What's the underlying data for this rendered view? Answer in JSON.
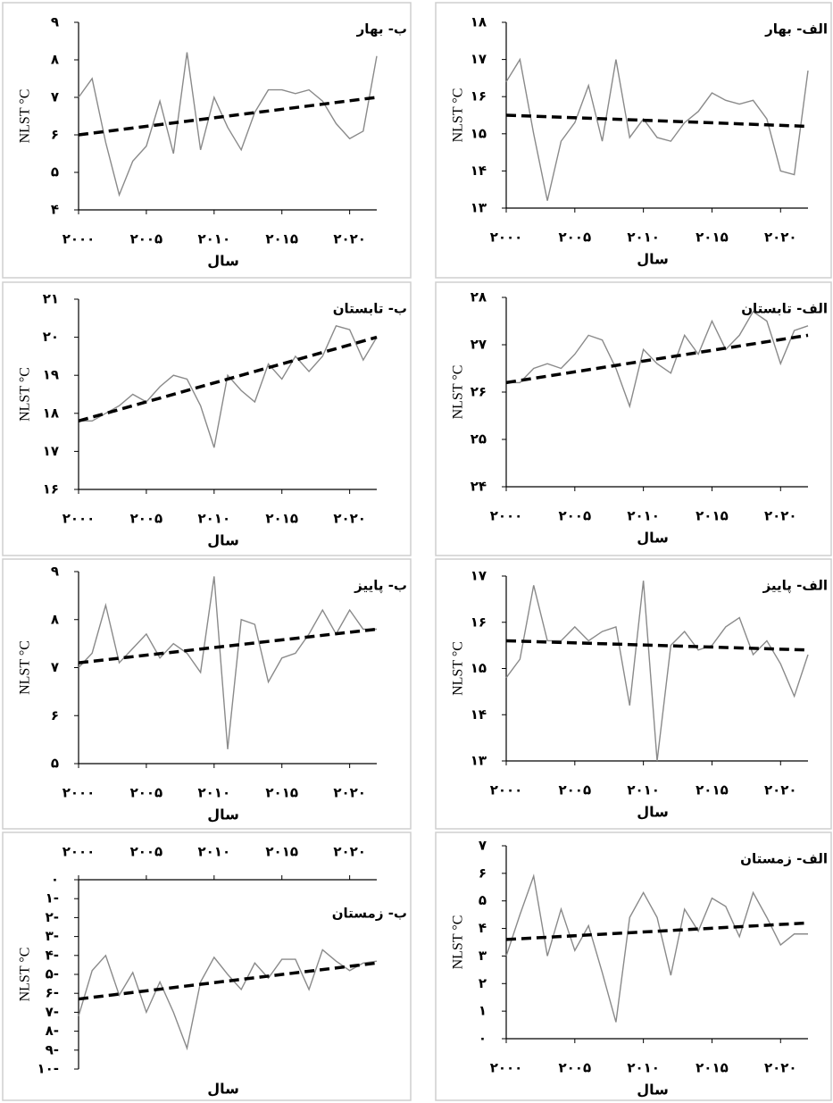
{
  "chart_data": [
    {
      "type": "line",
      "title": "ب- بهار",
      "x_label": "سال",
      "y_label": "NLST °C",
      "x": [
        2000,
        2001,
        2002,
        2003,
        2004,
        2005,
        2006,
        2007,
        2008,
        2009,
        2010,
        2011,
        2012,
        2013,
        2014,
        2015,
        2016,
        2017,
        2018,
        2019,
        2020,
        2021,
        2022
      ],
      "series": [
        {
          "color": "#8a8a8a",
          "values": [
            7.0,
            7.5,
            5.8,
            4.4,
            5.3,
            5.7,
            6.9,
            5.5,
            8.2,
            5.6,
            7.0,
            6.2,
            5.6,
            6.6,
            7.2,
            7.2,
            7.1,
            7.2,
            6.9,
            6.3,
            5.9,
            6.1,
            8.1
          ]
        }
      ],
      "trend": {
        "x": [
          2000,
          2022
        ],
        "values": [
          6.0,
          7.0
        ],
        "color": "#000000"
      },
      "xlim": [
        2000,
        2022
      ],
      "ylim": [
        4,
        9
      ],
      "xticks": [
        {
          "value": 2000,
          "label": "۲۰۰۰"
        },
        {
          "value": 2005,
          "label": "۲۰۰۵"
        },
        {
          "value": 2010,
          "label": "۲۰۱۰"
        },
        {
          "value": 2015,
          "label": "۲۰۱۵"
        },
        {
          "value": 2020,
          "label": "۲۰۲۰"
        }
      ],
      "yticks": [
        {
          "value": 4,
          "label": "۴"
        },
        {
          "value": 5,
          "label": "۵"
        },
        {
          "value": 6,
          "label": "۶"
        },
        {
          "value": 7,
          "label": "۷"
        },
        {
          "value": 8,
          "label": "۸"
        },
        {
          "value": 9,
          "label": "۹"
        }
      ]
    },
    {
      "type": "line",
      "title": "الف- بهار",
      "x_label": "سال",
      "y_label": "NLST °C",
      "x": [
        2000,
        2001,
        2002,
        2003,
        2004,
        2005,
        2006,
        2007,
        2008,
        2009,
        2010,
        2011,
        2012,
        2013,
        2014,
        2015,
        2016,
        2017,
        2018,
        2019,
        2020,
        2021,
        2022
      ],
      "series": [
        {
          "color": "#8a8a8a",
          "values": [
            16.4,
            17.0,
            15.0,
            13.2,
            14.8,
            15.3,
            16.3,
            14.8,
            17.0,
            14.9,
            15.4,
            14.9,
            14.8,
            15.3,
            15.6,
            16.1,
            15.9,
            15.8,
            15.9,
            15.4,
            14.0,
            13.9,
            16.7
          ]
        }
      ],
      "trend": {
        "x": [
          2000,
          2022
        ],
        "values": [
          15.5,
          15.2
        ],
        "color": "#000000"
      },
      "xlim": [
        2000,
        2022
      ],
      "ylim": [
        13,
        18
      ],
      "xticks": [
        {
          "value": 2000,
          "label": "۲۰۰۰"
        },
        {
          "value": 2005,
          "label": "۲۰۰۵"
        },
        {
          "value": 2010,
          "label": "۲۰۱۰"
        },
        {
          "value": 2015,
          "label": "۲۰۱۵"
        },
        {
          "value": 2020,
          "label": "۲۰۲۰"
        }
      ],
      "yticks": [
        {
          "value": 13,
          "label": "۱۳"
        },
        {
          "value": 14,
          "label": "۱۴"
        },
        {
          "value": 15,
          "label": "۱۵"
        },
        {
          "value": 16,
          "label": "۱۶"
        },
        {
          "value": 17,
          "label": "۱۷"
        },
        {
          "value": 18,
          "label": "۱۸"
        }
      ]
    },
    {
      "type": "line",
      "title": "ب- تابستان",
      "x_label": "سال",
      "y_label": "NLST °C",
      "x": [
        2000,
        2001,
        2002,
        2003,
        2004,
        2005,
        2006,
        2007,
        2008,
        2009,
        2010,
        2011,
        2012,
        2013,
        2014,
        2015,
        2016,
        2017,
        2018,
        2019,
        2020,
        2021,
        2022
      ],
      "series": [
        {
          "color": "#8a8a8a",
          "values": [
            17.8,
            17.8,
            18.0,
            18.2,
            18.5,
            18.3,
            18.7,
            19.0,
            18.9,
            18.2,
            17.1,
            19.0,
            18.6,
            18.3,
            19.3,
            18.9,
            19.5,
            19.1,
            19.5,
            20.3,
            20.2,
            19.4,
            20.0
          ]
        }
      ],
      "trend": {
        "x": [
          2000,
          2022
        ],
        "values": [
          17.8,
          20.0
        ],
        "color": "#000000"
      },
      "xlim": [
        2000,
        2022
      ],
      "ylim": [
        16,
        21
      ],
      "xticks": [
        {
          "value": 2000,
          "label": "۲۰۰۰"
        },
        {
          "value": 2005,
          "label": "۲۰۰۵"
        },
        {
          "value": 2010,
          "label": "۲۰۱۰"
        },
        {
          "value": 2015,
          "label": "۲۰۱۵"
        },
        {
          "value": 2020,
          "label": "۲۰۲۰"
        }
      ],
      "yticks": [
        {
          "value": 16,
          "label": "۱۶"
        },
        {
          "value": 17,
          "label": "۱۷"
        },
        {
          "value": 18,
          "label": "۱۸"
        },
        {
          "value": 19,
          "label": "۱۹"
        },
        {
          "value": 20,
          "label": "۲۰"
        },
        {
          "value": 21,
          "label": "۲۱"
        }
      ]
    },
    {
      "type": "line",
      "title": "الف- تابستان",
      "x_label": "سال",
      "y_label": "NLST °C",
      "x": [
        2000,
        2001,
        2002,
        2003,
        2004,
        2005,
        2006,
        2007,
        2008,
        2009,
        2010,
        2011,
        2012,
        2013,
        2014,
        2015,
        2016,
        2017,
        2018,
        2019,
        2020,
        2021,
        2022
      ],
      "series": [
        {
          "color": "#8a8a8a",
          "values": [
            26.2,
            26.2,
            26.5,
            26.6,
            26.5,
            26.8,
            27.2,
            27.1,
            26.5,
            25.7,
            26.9,
            26.6,
            26.4,
            27.2,
            26.8,
            27.5,
            26.9,
            27.2,
            27.7,
            27.5,
            26.6,
            27.3,
            27.4
          ]
        }
      ],
      "trend": {
        "x": [
          2000,
          2022
        ],
        "values": [
          26.2,
          27.2
        ],
        "color": "#000000"
      },
      "xlim": [
        2000,
        2022
      ],
      "ylim": [
        24,
        28
      ],
      "xticks": [
        {
          "value": 2000,
          "label": "۲۰۰۰"
        },
        {
          "value": 2005,
          "label": "۲۰۰۵"
        },
        {
          "value": 2010,
          "label": "۲۰۱۰"
        },
        {
          "value": 2015,
          "label": "۲۰۱۵"
        },
        {
          "value": 2020,
          "label": "۲۰۲۰"
        }
      ],
      "yticks": [
        {
          "value": 24,
          "label": "۲۴"
        },
        {
          "value": 25,
          "label": "۲۵"
        },
        {
          "value": 26,
          "label": "۲۶"
        },
        {
          "value": 27,
          "label": "۲۷"
        },
        {
          "value": 28,
          "label": "۲۸"
        }
      ]
    },
    {
      "type": "line",
      "title": "ب- پاییز",
      "x_label": "سال",
      "y_label": "NLST °C",
      "x": [
        2000,
        2001,
        2002,
        2003,
        2004,
        2005,
        2006,
        2007,
        2008,
        2009,
        2010,
        2011,
        2012,
        2013,
        2014,
        2015,
        2016,
        2017,
        2018,
        2019,
        2020,
        2021,
        2022
      ],
      "series": [
        {
          "color": "#8a8a8a",
          "values": [
            7.0,
            7.3,
            8.3,
            7.1,
            7.4,
            7.7,
            7.2,
            7.5,
            7.3,
            6.9,
            8.9,
            5.3,
            8.0,
            7.9,
            6.7,
            7.2,
            7.3,
            7.7,
            8.2,
            7.7,
            8.2,
            7.8,
            7.8
          ]
        }
      ],
      "trend": {
        "x": [
          2000,
          2022
        ],
        "values": [
          7.1,
          7.8
        ],
        "color": "#000000"
      },
      "xlim": [
        2000,
        2022
      ],
      "ylim": [
        5,
        9
      ],
      "xticks": [
        {
          "value": 2000,
          "label": "۲۰۰۰"
        },
        {
          "value": 2005,
          "label": "۲۰۰۵"
        },
        {
          "value": 2010,
          "label": "۲۰۱۰"
        },
        {
          "value": 2015,
          "label": "۲۰۱۵"
        },
        {
          "value": 2020,
          "label": "۲۰۲۰"
        }
      ],
      "yticks": [
        {
          "value": 5,
          "label": "۵"
        },
        {
          "value": 6,
          "label": "۶"
        },
        {
          "value": 7,
          "label": "۷"
        },
        {
          "value": 8,
          "label": "۸"
        },
        {
          "value": 9,
          "label": "۹"
        }
      ]
    },
    {
      "type": "line",
      "title": "الف- پاییز",
      "x_label": "سال",
      "y_label": "NLST °C",
      "x": [
        2000,
        2001,
        2002,
        2003,
        2004,
        2005,
        2006,
        2007,
        2008,
        2009,
        2010,
        2011,
        2012,
        2013,
        2014,
        2015,
        2016,
        2017,
        2018,
        2019,
        2020,
        2021,
        2022
      ],
      "series": [
        {
          "color": "#8a8a8a",
          "values": [
            14.8,
            15.2,
            16.8,
            15.6,
            15.6,
            15.9,
            15.6,
            15.8,
            15.9,
            14.2,
            16.9,
            13.0,
            15.5,
            15.8,
            15.4,
            15.5,
            15.9,
            16.1,
            15.3,
            15.6,
            15.1,
            14.4,
            15.3
          ]
        }
      ],
      "trend": {
        "x": [
          2000,
          2022
        ],
        "values": [
          15.6,
          15.4
        ],
        "color": "#000000"
      },
      "xlim": [
        2000,
        2022
      ],
      "ylim": [
        13,
        17
      ],
      "xticks": [
        {
          "value": 2000,
          "label": "۲۰۰۰"
        },
        {
          "value": 2005,
          "label": "۲۰۰۵"
        },
        {
          "value": 2010,
          "label": "۲۰۱۰"
        },
        {
          "value": 2015,
          "label": "۲۰۱۵"
        },
        {
          "value": 2020,
          "label": "۲۰۲۰"
        }
      ],
      "yticks": [
        {
          "value": 13,
          "label": "۱۳"
        },
        {
          "value": 14,
          "label": "۱۴"
        },
        {
          "value": 15,
          "label": "۱۵"
        },
        {
          "value": 16,
          "label": "۱۶"
        },
        {
          "value": 17,
          "label": "۱۷"
        }
      ]
    },
    {
      "type": "line",
      "title": "ب- زمستان",
      "x_label": "سال",
      "y_label": "NLST °C",
      "x_axis_top": true,
      "x": [
        2000,
        2001,
        2002,
        2003,
        2004,
        2005,
        2006,
        2007,
        2008,
        2009,
        2010,
        2011,
        2012,
        2013,
        2014,
        2015,
        2016,
        2017,
        2018,
        2019,
        2020,
        2021,
        2022
      ],
      "series": [
        {
          "color": "#8a8a8a",
          "values": [
            -7.2,
            -4.8,
            -4.0,
            -6.1,
            -4.9,
            -7.0,
            -5.4,
            -7.0,
            -8.9,
            -5.4,
            -4.1,
            -5.0,
            -5.8,
            -4.4,
            -5.2,
            -4.2,
            -4.2,
            -5.8,
            -3.7,
            -4.3,
            -4.8,
            -4.4,
            -4.3
          ]
        }
      ],
      "trend": {
        "x": [
          2000,
          2022
        ],
        "values": [
          -6.3,
          -4.4
        ],
        "color": "#000000"
      },
      "xlim": [
        2000,
        2022
      ],
      "ylim": [
        -10,
        0
      ],
      "xticks": [
        {
          "value": 2000,
          "label": "۲۰۰۰"
        },
        {
          "value": 2005,
          "label": "۲۰۰۵"
        },
        {
          "value": 2010,
          "label": "۲۰۱۰"
        },
        {
          "value": 2015,
          "label": "۲۰۱۵"
        },
        {
          "value": 2020,
          "label": "۲۰۲۰"
        }
      ],
      "yticks": [
        {
          "value": 0,
          "label": "۰"
        },
        {
          "value": -1,
          "label": "۱-"
        },
        {
          "value": -2,
          "label": "۲-"
        },
        {
          "value": -3,
          "label": "۳-"
        },
        {
          "value": -4,
          "label": "۴-"
        },
        {
          "value": -5,
          "label": "۵-"
        },
        {
          "value": -6,
          "label": "۶-"
        },
        {
          "value": -7,
          "label": "۷-"
        },
        {
          "value": -8,
          "label": "۸-"
        },
        {
          "value": -9,
          "label": "۹-"
        },
        {
          "value": -10,
          "label": "۱۰-"
        }
      ]
    },
    {
      "type": "line",
      "title": "الف- زمستان",
      "x_label": "سال",
      "y_label": "NLST °C",
      "x": [
        2000,
        2001,
        2002,
        2003,
        2004,
        2005,
        2006,
        2007,
        2008,
        2009,
        2010,
        2011,
        2012,
        2013,
        2014,
        2015,
        2016,
        2017,
        2018,
        2019,
        2020,
        2021,
        2022
      ],
      "series": [
        {
          "color": "#8a8a8a",
          "values": [
            3.0,
            4.5,
            5.9,
            3.0,
            4.7,
            3.2,
            4.1,
            2.4,
            0.6,
            4.4,
            5.3,
            4.4,
            2.3,
            4.7,
            3.9,
            5.1,
            4.8,
            3.7,
            5.3,
            4.4,
            3.4,
            3.8,
            3.8
          ]
        }
      ],
      "trend": {
        "x": [
          2000,
          2022
        ],
        "values": [
          3.6,
          4.2
        ],
        "color": "#000000"
      },
      "xlim": [
        2000,
        2022
      ],
      "ylim": [
        0,
        7
      ],
      "xticks": [
        {
          "value": 2000,
          "label": "۲۰۰۰"
        },
        {
          "value": 2005,
          "label": "۲۰۰۵"
        },
        {
          "value": 2010,
          "label": "۲۰۱۰"
        },
        {
          "value": 2015,
          "label": "۲۰۱۵"
        },
        {
          "value": 2020,
          "label": "۲۰۲۰"
        }
      ],
      "yticks": [
        {
          "value": 0,
          "label": "۰"
        },
        {
          "value": 1,
          "label": "۱"
        },
        {
          "value": 2,
          "label": "۲"
        },
        {
          "value": 3,
          "label": "۳"
        },
        {
          "value": 4,
          "label": "۴"
        },
        {
          "value": 5,
          "label": "۵"
        },
        {
          "value": 6,
          "label": "۶"
        },
        {
          "value": 7,
          "label": "۷"
        }
      ]
    }
  ]
}
